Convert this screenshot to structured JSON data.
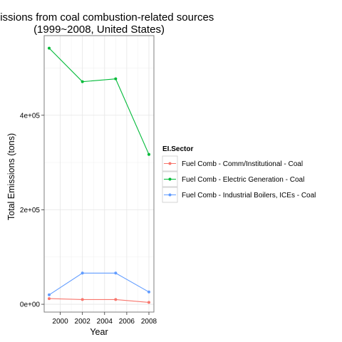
{
  "chart_data": {
    "type": "line",
    "title": "Emissions from coal combustion-related sources",
    "subtitle": "(1999~2008, United States)",
    "xlabel": "Year",
    "ylabel": "Total Emissions (tons)",
    "x": [
      1999,
      2002,
      2005,
      2008
    ],
    "xlim": [
      1998.55,
      2008.45
    ],
    "ylim": [
      -16500,
      568500
    ],
    "x_ticks": [
      2000,
      2002,
      2004,
      2006,
      2008
    ],
    "x_tick_labels": [
      "2000",
      "2002",
      "2004",
      "2006",
      "2008"
    ],
    "y_ticks": [
      0,
      200000,
      400000
    ],
    "y_tick_labels": [
      "0e+00",
      "2e+05",
      "4e+05"
    ],
    "grid": true,
    "legend": {
      "title": "EI.Sector",
      "position": "right"
    },
    "series": [
      {
        "name": "Fuel Comb - Comm/Institutional - Coal",
        "color": "#f8766d",
        "values": [
          12000,
          10000,
          10000,
          4000
        ]
      },
      {
        "name": "Fuel Comb - Electric Generation - Coal",
        "color": "#00ba38",
        "values": [
          542000,
          471000,
          477000,
          317000
        ]
      },
      {
        "name": "Fuel Comb - Industrial Boilers, ICEs - Coal",
        "color": "#619cff",
        "values": [
          20000,
          66000,
          66000,
          26000
        ]
      }
    ]
  }
}
